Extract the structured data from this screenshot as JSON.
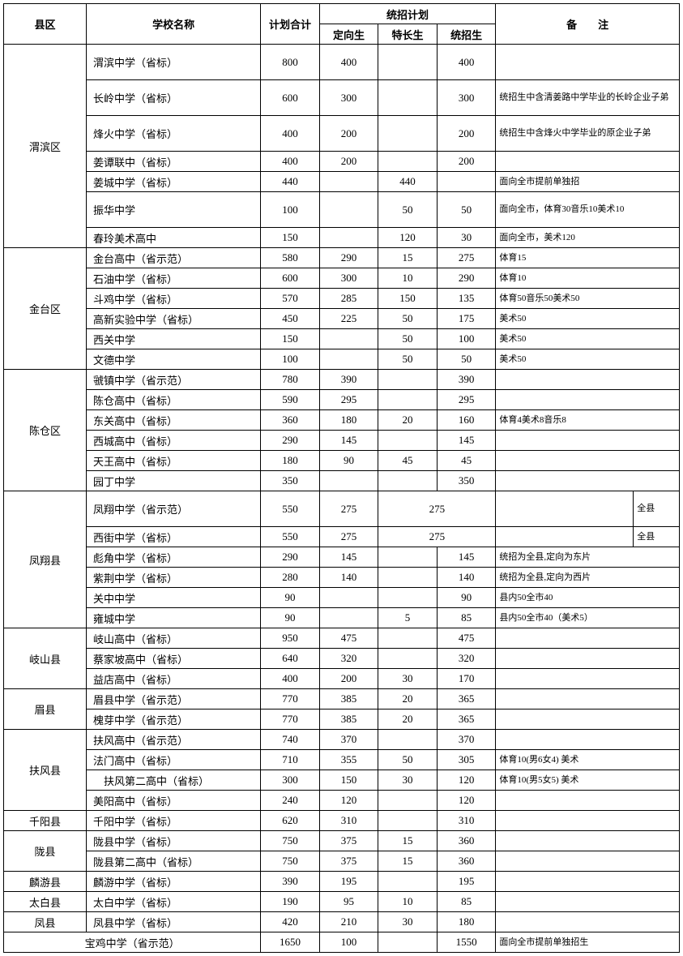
{
  "headers": {
    "district": "县区",
    "school": "学校名称",
    "total": "计划合计",
    "unified_plan": "统招计划",
    "directed": "定向生",
    "specialty": "特长生",
    "unified": "统招生",
    "notes": "备　　注"
  },
  "districts": [
    {
      "name": "渭滨区",
      "schools": [
        {
          "name": "渭滨中学（省标）",
          "total": "800",
          "dx": "400",
          "tc": "",
          "tz": "400",
          "note": "",
          "tall": true
        },
        {
          "name": "长岭中学（省标）",
          "total": "600",
          "dx": "300",
          "tc": "",
          "tz": "300",
          "note": "统招生中含清姜路中学毕业的长岭企业子弟",
          "tall": true
        },
        {
          "name": "烽火中学（省标）",
          "total": "400",
          "dx": "200",
          "tc": "",
          "tz": "200",
          "note": "统招生中含烽火中学毕业的原企业子弟",
          "tall": true
        },
        {
          "name": "姜谭联中（省标）",
          "total": "400",
          "dx": "200",
          "tc": "",
          "tz": "200",
          "note": ""
        },
        {
          "name": "姜城中学（省标）",
          "total": "440",
          "dx": "",
          "tc": "440",
          "tz": "",
          "note": "面向全市提前单独招"
        },
        {
          "name": "振华中学",
          "total": "100",
          "dx": "",
          "tc": "50",
          "tz": "50",
          "note": "面向全市，体育30音乐10美术10",
          "tall": true
        },
        {
          "name": "春玲美术高中",
          "total": "150",
          "dx": "",
          "tc": "120",
          "tz": "30",
          "note": "面向全市，美术120"
        }
      ]
    },
    {
      "name": "金台区",
      "schools": [
        {
          "name": "金台高中（省示范）",
          "total": "580",
          "dx": "290",
          "tc": "15",
          "tz": "275",
          "note": "体育15"
        },
        {
          "name": "石油中学（省标）",
          "total": "600",
          "dx": "300",
          "tc": "10",
          "tz": "290",
          "note": "体育10"
        },
        {
          "name": "斗鸡中学（省标）",
          "total": "570",
          "dx": "285",
          "tc": "150",
          "tz": "135",
          "note": "体育50音乐50美术50"
        },
        {
          "name": "高新实验中学（省标）",
          "total": "450",
          "dx": "225",
          "tc": "50",
          "tz": "175",
          "note": "美术50"
        },
        {
          "name": "西关中学",
          "total": "150",
          "dx": "",
          "tc": "50",
          "tz": "100",
          "note": "美术50"
        },
        {
          "name": "文德中学",
          "total": "100",
          "dx": "",
          "tc": "50",
          "tz": "50",
          "note": "美术50"
        }
      ]
    },
    {
      "name": "陈仓区",
      "schools": [
        {
          "name": "虢镇中学（省示范）",
          "total": "780",
          "dx": "390",
          "tc": "",
          "tz": "390",
          "note": ""
        },
        {
          "name": "陈仓高中（省标）",
          "total": "590",
          "dx": "295",
          "tc": "",
          "tz": "295",
          "note": ""
        },
        {
          "name": "东关高中（省标）",
          "total": "360",
          "dx": "180",
          "tc": "20",
          "tz": "160",
          "note": "体育4美术8音乐8"
        },
        {
          "name": "西城高中（省标）",
          "total": "290",
          "dx": "145",
          "tc": "",
          "tz": "145",
          "note": ""
        },
        {
          "name": "天王高中（省标）",
          "total": "180",
          "dx": "90",
          "tc": "45",
          "tz": "45",
          "note": ""
        },
        {
          "name": "园丁中学",
          "total": "350",
          "dx": "",
          "tc": "",
          "tz": "350",
          "note": ""
        }
      ]
    },
    {
      "name": "凤翔县",
      "schools": [
        {
          "name": "凤翔中学（省示范）",
          "total": "550",
          "dx": "275",
          "merged_tz": "275",
          "note2": "全县",
          "tall": true
        },
        {
          "name": "西街中学（省标）",
          "total": "550",
          "dx": "275",
          "merged_tz": "275",
          "note2": "全县"
        },
        {
          "name": "彪角中学（省标）",
          "total": "290",
          "dx": "145",
          "tc": "",
          "tz": "145",
          "note": "统招为全县,定向为东片"
        },
        {
          "name": "紫荆中学（省标）",
          "total": "280",
          "dx": "140",
          "tc": "",
          "tz": "140",
          "note": "统招为全县,定向为西片"
        },
        {
          "name": "关中中学",
          "total": "90",
          "dx": "",
          "tc": "",
          "tz": "90",
          "note": "县内50全市40"
        },
        {
          "name": "雍城中学",
          "total": "90",
          "dx": "",
          "tc": "5",
          "tz": "85",
          "note": "县内50全市40（美术5）"
        }
      ]
    },
    {
      "name": "岐山县",
      "schools": [
        {
          "name": "岐山高中（省标）",
          "total": "950",
          "dx": "475",
          "tc": "",
          "tz": "475",
          "note": ""
        },
        {
          "name": "蔡家坡高中（省标）",
          "total": "640",
          "dx": "320",
          "tc": "",
          "tz": "320",
          "note": ""
        },
        {
          "name": "益店高中（省标）",
          "total": "400",
          "dx": "200",
          "tc": "30",
          "tz": "170",
          "note": ""
        }
      ]
    },
    {
      "name": "眉县",
      "schools": [
        {
          "name": "眉县中学（省示范）",
          "total": "770",
          "dx": "385",
          "tc": "20",
          "tz": "365",
          "note": ""
        },
        {
          "name": "槐芽中学（省示范）",
          "total": "770",
          "dx": "385",
          "tc": "20",
          "tz": "365",
          "note": ""
        }
      ]
    },
    {
      "name": "扶风县",
      "schools": [
        {
          "name": "扶风高中（省示范）",
          "total": "740",
          "dx": "370",
          "tc": "",
          "tz": "370",
          "note": ""
        },
        {
          "name": "法门高中（省标）",
          "total": "710",
          "dx": "355",
          "tc": "50",
          "tz": "305",
          "note": "体育10(男6女4) 美术"
        },
        {
          "name": "　扶风第二高中（省标）",
          "total": "300",
          "dx": "150",
          "tc": "30",
          "tz": "120",
          "note": "体育10(男5女5) 美术"
        },
        {
          "name": "美阳高中（省标）",
          "total": "240",
          "dx": "120",
          "tc": "",
          "tz": "120",
          "note": ""
        }
      ]
    },
    {
      "name": "千阳县",
      "schools": [
        {
          "name": "千阳中学（省标）",
          "total": "620",
          "dx": "310",
          "tc": "",
          "tz": "310",
          "note": ""
        }
      ]
    },
    {
      "name": "陇县",
      "schools": [
        {
          "name": "陇县中学（省标）",
          "total": "750",
          "dx": "375",
          "tc": "15",
          "tz": "360",
          "note": ""
        },
        {
          "name": "陇县第二高中（省标）",
          "total": "750",
          "dx": "375",
          "tc": "15",
          "tz": "360",
          "note": ""
        }
      ]
    },
    {
      "name": "麟游县",
      "schools": [
        {
          "name": "麟游中学（省标）",
          "total": "390",
          "dx": "195",
          "tc": "",
          "tz": "195",
          "note": ""
        }
      ]
    },
    {
      "name": "太白县",
      "schools": [
        {
          "name": "太白中学（省标）",
          "total": "190",
          "dx": "95",
          "tc": "10",
          "tz": "85",
          "note": ""
        }
      ]
    },
    {
      "name": "凤县",
      "schools": [
        {
          "name": "凤县中学（省标）",
          "total": "420",
          "dx": "210",
          "tc": "30",
          "tz": "180",
          "note": ""
        }
      ]
    }
  ],
  "footer": {
    "school": "宝鸡中学（省示范）",
    "total": "1650",
    "dx": "100",
    "tc": "",
    "tz": "1550",
    "note": "面向全市提前单独招生"
  }
}
